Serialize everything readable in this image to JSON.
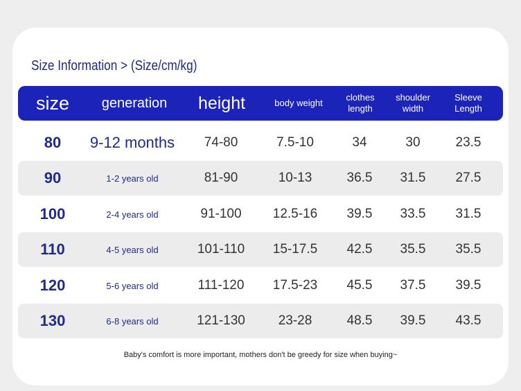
{
  "title": "Size Information > (Size/cm/kg)",
  "colors": {
    "header_bg": "#1b23b8",
    "header_text": "#ffffff",
    "size_text": "#1f2a8a",
    "row_shade": "#ececec"
  },
  "headers": [
    "size",
    "generation",
    "height",
    "body weight",
    "clothes length",
    "shoulder width",
    "Sleeve Length"
  ],
  "rows": [
    [
      "80",
      "9-12 months",
      "74-80",
      "7.5-10",
      "34",
      "30",
      "23.5"
    ],
    [
      "90",
      "1-2 years old",
      "81-90",
      "10-13",
      "36.5",
      "31.5",
      "27.5"
    ],
    [
      "100",
      "2-4 years old",
      "91-100",
      "12.5-16",
      "39.5",
      "33.5",
      "31.5"
    ],
    [
      "110",
      "4-5 years old",
      "101-110",
      "15-17.5",
      "42.5",
      "35.5",
      "35.5"
    ],
    [
      "120",
      "5-6 years old",
      "111-120",
      "17.5-23",
      "45.5",
      "37.5",
      "39.5"
    ],
    [
      "130",
      "6-8 years old",
      "121-130",
      "23-28",
      "48.5",
      "39.5",
      "43.5"
    ]
  ],
  "footer": "Baby's comfort is more important, mothers don't be greedy for size when buying~"
}
